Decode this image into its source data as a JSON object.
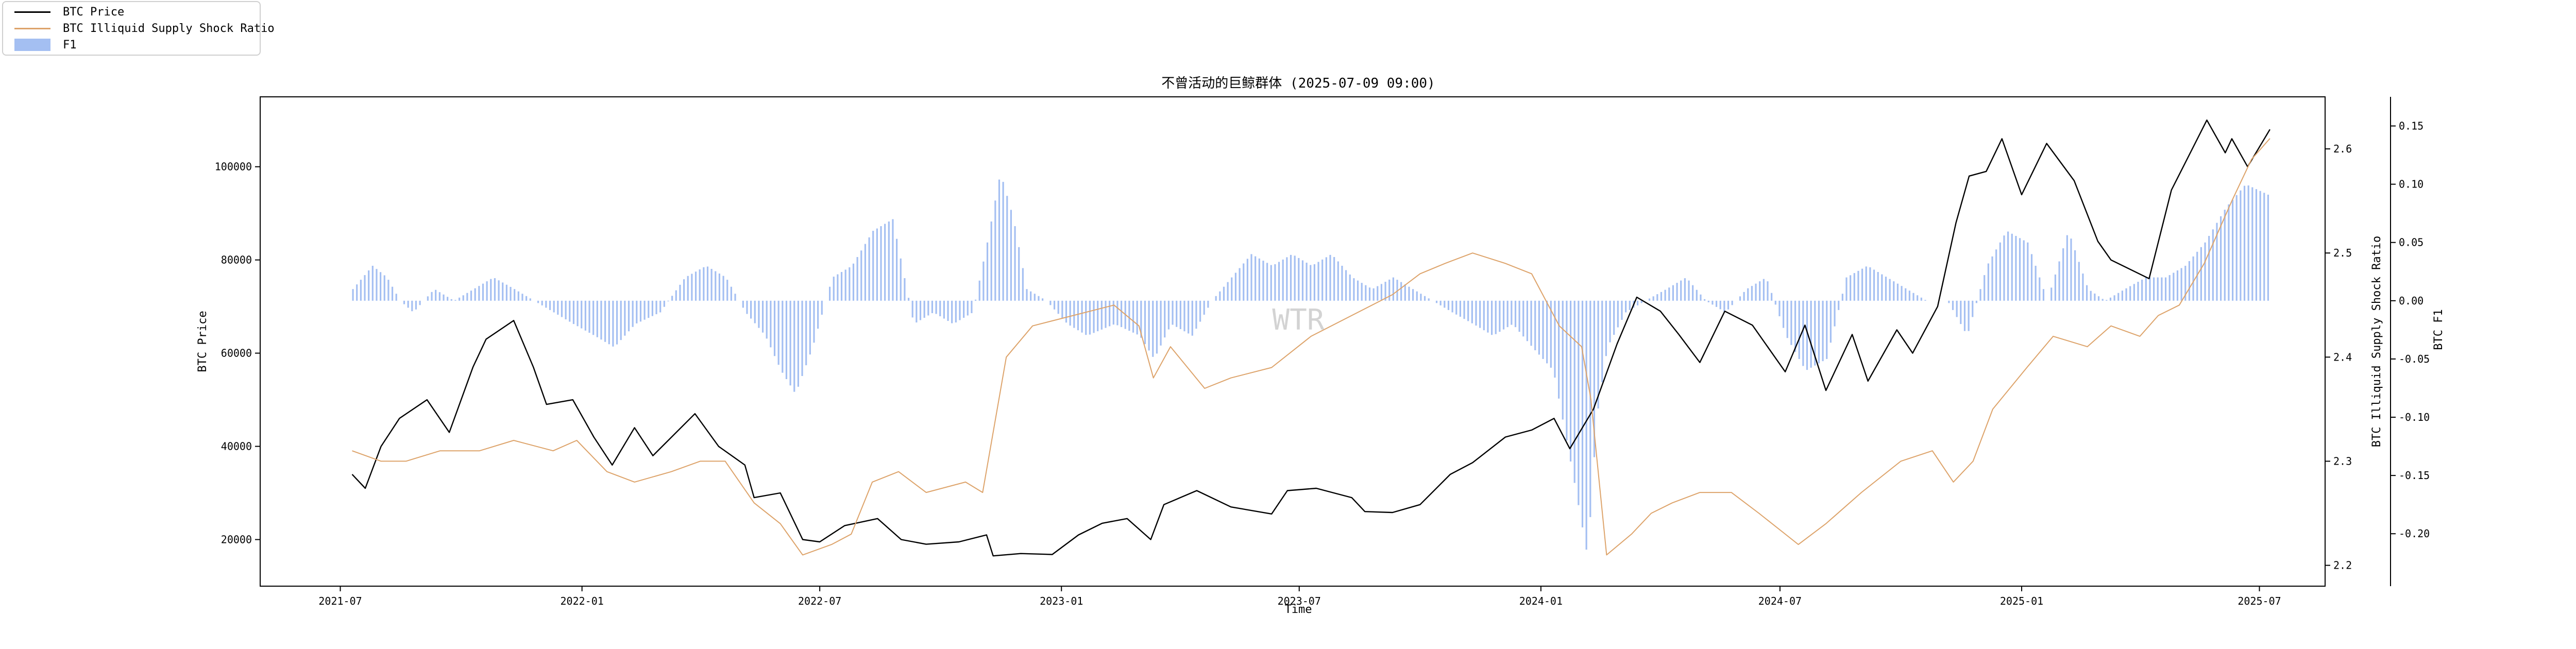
{
  "chart_data": {
    "type": "line",
    "title": "不曾活动的巨鲸群体 (2025-07-09 09:00)",
    "xlabel": "Time",
    "ylabel_left": "BTC Price",
    "ylabel_right1": "BTC Illiquid Supply Shock Ratio",
    "ylabel_right2": "BTC F1",
    "watermark": "WTR",
    "x_ticks": [
      "2021-07",
      "2022-01",
      "2022-07",
      "2023-01",
      "2023-07",
      "2024-01",
      "2024-07",
      "2025-01",
      "2025-07"
    ],
    "y_left_ticks": [
      20000,
      40000,
      60000,
      80000,
      100000
    ],
    "y_left_range": [
      10000,
      115000
    ],
    "y_right1_ticks": [
      2.2,
      2.3,
      2.4,
      2.5,
      2.6
    ],
    "y_right1_range": [
      2.18,
      2.65
    ],
    "y_right2_ticks": [
      -0.2,
      -0.15,
      -0.1,
      -0.05,
      0.0,
      0.05,
      0.1,
      0.15
    ],
    "y_right2_range": [
      -0.245,
      0.175
    ],
    "legend": [
      {
        "label": "BTC Price",
        "kind": "line",
        "color": "#000000"
      },
      {
        "label": "BTC Illiquid Supply Shock Ratio",
        "kind": "line",
        "color": "#dda36a"
      },
      {
        "label": "F1",
        "kind": "bar",
        "color": "#a4bff2"
      }
    ],
    "series": [
      {
        "name": "BTC Price",
        "axis": "left",
        "color": "#000000",
        "x": [
          "2021-07-10",
          "2021-07-20",
          "2021-08-01",
          "2021-08-15",
          "2021-09-05",
          "2021-09-22",
          "2021-10-10",
          "2021-10-20",
          "2021-11-10",
          "2021-11-25",
          "2021-12-05",
          "2021-12-25",
          "2022-01-10",
          "2022-01-24",
          "2022-02-10",
          "2022-02-24",
          "2022-03-28",
          "2022-04-15",
          "2022-05-05",
          "2022-05-12",
          "2022-06-01",
          "2022-06-18",
          "2022-07-01",
          "2022-07-20",
          "2022-08-14",
          "2022-09-01",
          "2022-09-20",
          "2022-10-15",
          "2022-11-05",
          "2022-11-10",
          "2022-12-01",
          "2022-12-25",
          "2023-01-14",
          "2023-02-01",
          "2023-02-20",
          "2023-03-10",
          "2023-03-20",
          "2023-04-14",
          "2023-05-10",
          "2023-06-10",
          "2023-06-22",
          "2023-07-14",
          "2023-08-10",
          "2023-08-20",
          "2023-09-10",
          "2023-10-01",
          "2023-10-24",
          "2023-11-10",
          "2023-12-05",
          "2023-12-25",
          "2024-01-11",
          "2024-01-23",
          "2024-02-10",
          "2024-02-28",
          "2024-03-14",
          "2024-04-01",
          "2024-04-15",
          "2024-05-01",
          "2024-05-20",
          "2024-06-10",
          "2024-07-05",
          "2024-07-20",
          "2024-08-05",
          "2024-08-25",
          "2024-09-06",
          "2024-09-28",
          "2024-10-10",
          "2024-10-29",
          "2024-11-12",
          "2024-11-22",
          "2024-12-05",
          "2024-12-17",
          "2025-01-01",
          "2025-01-20",
          "2025-02-10",
          "2025-02-28",
          "2025-03-10",
          "2025-04-08",
          "2025-04-25",
          "2025-05-22",
          "2025-06-05",
          "2025-06-10",
          "2025-06-22",
          "2025-07-09"
        ],
        "y": [
          34000,
          31000,
          40000,
          46000,
          50000,
          43000,
          57000,
          63000,
          67000,
          57000,
          49000,
          50000,
          42000,
          36000,
          44000,
          38000,
          47000,
          40000,
          36000,
          29000,
          30000,
          20000,
          19500,
          23000,
          24500,
          20000,
          19000,
          19500,
          21000,
          16500,
          17000,
          16800,
          21000,
          23500,
          24500,
          20000,
          27500,
          30500,
          27000,
          25500,
          30500,
          31000,
          29000,
          26000,
          25800,
          27500,
          34000,
          36500,
          42000,
          43500,
          46000,
          39500,
          48000,
          62000,
          72000,
          69000,
          64000,
          58000,
          69000,
          66000,
          56000,
          66000,
          52000,
          64000,
          54000,
          65000,
          60000,
          70000,
          88000,
          98000,
          99000,
          106000,
          94000,
          105000,
          97000,
          84000,
          80000,
          76000,
          95000,
          110000,
          103000,
          106000,
          100000,
          108000
        ]
      },
      {
        "name": "BTC Illiquid Supply Shock Ratio",
        "axis": "right1",
        "color": "#dda36a",
        "x": [
          "2021-07-10",
          "2021-08-01",
          "2021-08-20",
          "2021-09-15",
          "2021-10-15",
          "2021-11-10",
          "2021-12-10",
          "2021-12-28",
          "2022-01-20",
          "2022-02-10",
          "2022-03-10",
          "2022-04-01",
          "2022-04-20",
          "2022-05-12",
          "2022-06-01",
          "2022-06-18",
          "2022-07-10",
          "2022-07-25",
          "2022-08-10",
          "2022-08-30",
          "2022-09-20",
          "2022-10-20",
          "2022-11-02",
          "2022-11-20",
          "2022-12-10",
          "2023-01-10",
          "2023-02-10",
          "2023-03-01",
          "2023-03-12",
          "2023-03-25",
          "2023-04-20",
          "2023-05-10",
          "2023-06-10",
          "2023-07-10",
          "2023-08-10",
          "2023-09-10",
          "2023-10-01",
          "2023-10-20",
          "2023-11-10",
          "2023-12-05",
          "2023-12-25",
          "2024-01-15",
          "2024-02-01",
          "2024-02-08",
          "2024-02-20",
          "2024-03-10",
          "2024-03-25",
          "2024-04-10",
          "2024-05-01",
          "2024-05-25",
          "2024-06-15",
          "2024-07-05",
          "2024-07-15",
          "2024-08-05",
          "2024-09-01",
          "2024-10-01",
          "2024-10-25",
          "2024-11-10",
          "2024-11-25",
          "2024-12-10",
          "2025-01-05",
          "2025-01-25",
          "2025-02-20",
          "2025-03-10",
          "2025-04-01",
          "2025-04-15",
          "2025-05-01",
          "2025-05-20",
          "2025-06-10",
          "2025-06-25",
          "2025-07-09"
        ],
        "y": [
          2.31,
          2.3,
          2.3,
          2.31,
          2.31,
          2.32,
          2.31,
          2.32,
          2.29,
          2.28,
          2.29,
          2.3,
          2.3,
          2.26,
          2.24,
          2.21,
          2.22,
          2.23,
          2.28,
          2.29,
          2.27,
          2.28,
          2.27,
          2.4,
          2.43,
          2.44,
          2.45,
          2.43,
          2.38,
          2.41,
          2.37,
          2.38,
          2.39,
          2.42,
          2.44,
          2.46,
          2.48,
          2.49,
          2.5,
          2.49,
          2.48,
          2.43,
          2.41,
          2.36,
          2.21,
          2.23,
          2.25,
          2.26,
          2.27,
          2.27,
          2.25,
          2.23,
          2.22,
          2.24,
          2.27,
          2.3,
          2.31,
          2.28,
          2.3,
          2.35,
          2.39,
          2.42,
          2.41,
          2.43,
          2.42,
          2.44,
          2.45,
          2.49,
          2.55,
          2.59,
          2.61
        ]
      },
      {
        "name": "F1",
        "axis": "right2",
        "kind": "bar",
        "color": "#a4bff2",
        "x": [
          "2021-07-10",
          "2021-07-25",
          "2021-08-05",
          "2021-08-15",
          "2021-08-25",
          "2021-09-10",
          "2021-09-25",
          "2021-10-10",
          "2021-10-25",
          "2021-11-10",
          "2021-11-25",
          "2021-12-10",
          "2021-12-25",
          "2022-01-10",
          "2022-01-25",
          "2022-02-10",
          "2022-03-01",
          "2022-03-20",
          "2022-04-05",
          "2022-04-20",
          "2022-05-05",
          "2022-05-20",
          "2022-06-01",
          "2022-06-12",
          "2022-06-25",
          "2022-07-10",
          "2022-07-25",
          "2022-08-10",
          "2022-08-25",
          "2022-09-10",
          "2022-09-25",
          "2022-10-10",
          "2022-10-25",
          "2022-11-05",
          "2022-11-15",
          "2022-11-25",
          "2022-12-05",
          "2022-12-20",
          "2023-01-05",
          "2023-01-20",
          "2023-02-10",
          "2023-03-01",
          "2023-03-12",
          "2023-03-25",
          "2023-04-10",
          "2023-04-25",
          "2023-05-10",
          "2023-05-25",
          "2023-06-10",
          "2023-06-25",
          "2023-07-10",
          "2023-07-25",
          "2023-08-10",
          "2023-08-25",
          "2023-09-10",
          "2023-09-25",
          "2023-10-10",
          "2023-10-25",
          "2023-11-10",
          "2023-11-25",
          "2023-12-10",
          "2023-12-25",
          "2024-01-10",
          "2024-01-25",
          "2024-02-05",
          "2024-02-12",
          "2024-02-20",
          "2024-03-05",
          "2024-03-20",
          "2024-04-05",
          "2024-04-20",
          "2024-05-05",
          "2024-05-20",
          "2024-06-05",
          "2024-06-20",
          "2024-07-05",
          "2024-07-20",
          "2024-08-05",
          "2024-08-20",
          "2024-09-05",
          "2024-09-20",
          "2024-10-05",
          "2024-10-20",
          "2024-11-05",
          "2024-11-20",
          "2024-12-05",
          "2024-12-20",
          "2025-01-05",
          "2025-01-20",
          "2025-02-05",
          "2025-02-20",
          "2025-03-05",
          "2025-03-20",
          "2025-04-05",
          "2025-04-20",
          "2025-05-05",
          "2025-05-20",
          "2025-06-05",
          "2025-06-20",
          "2025-07-09"
        ],
        "y": [
          0.01,
          0.03,
          0.02,
          0.0,
          -0.01,
          0.01,
          0.0,
          0.01,
          0.02,
          0.01,
          0.0,
          -0.01,
          -0.02,
          -0.03,
          -0.04,
          -0.02,
          -0.01,
          0.02,
          0.03,
          0.02,
          -0.01,
          -0.03,
          -0.06,
          -0.08,
          -0.04,
          0.02,
          0.03,
          0.06,
          0.07,
          -0.02,
          -0.01,
          -0.02,
          -0.01,
          0.05,
          0.11,
          0.07,
          0.01,
          0.0,
          -0.02,
          -0.03,
          -0.02,
          -0.03,
          -0.05,
          -0.02,
          -0.03,
          0.0,
          0.02,
          0.04,
          0.03,
          0.04,
          0.03,
          0.04,
          0.02,
          0.01,
          0.02,
          0.01,
          0.0,
          -0.01,
          -0.02,
          -0.03,
          -0.02,
          -0.04,
          -0.06,
          -0.15,
          -0.22,
          -0.1,
          -0.04,
          -0.01,
          0.0,
          0.01,
          0.02,
          0.0,
          -0.01,
          0.01,
          0.02,
          -0.03,
          -0.06,
          -0.05,
          0.02,
          0.03,
          0.02,
          0.01,
          0.0,
          0.0,
          -0.03,
          0.03,
          0.06,
          0.05,
          0.0,
          0.06,
          0.01,
          0.0,
          0.01,
          0.02,
          0.02,
          0.03,
          0.05,
          0.08,
          0.1,
          0.09
        ]
      }
    ]
  }
}
